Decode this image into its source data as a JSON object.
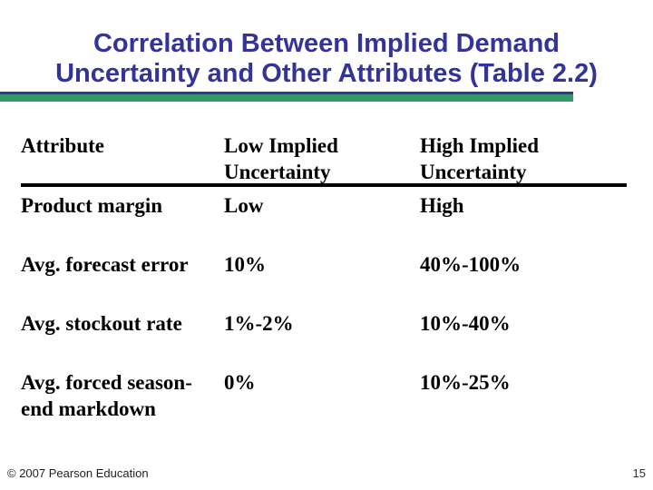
{
  "slide": {
    "title_line1": "Correlation Between Implied Demand",
    "title_line2": "Uncertainty and Other Attributes (Table 2.2)"
  },
  "colors": {
    "title_text": "#333399",
    "accent_bar_green": "#339966",
    "accent_bar_navy": "#333399",
    "table_text": "#000000",
    "header_rule": "#000000"
  },
  "table": {
    "headers": [
      "Attribute",
      "Low Implied Uncertainty",
      "High Implied Uncertainty"
    ],
    "rows": [
      [
        "Product margin",
        "Low",
        "High"
      ],
      [
        "Avg. forecast error",
        "10%",
        "40%-100%"
      ],
      [
        "Avg. stockout rate",
        "1%-2%",
        "10%-40%"
      ],
      [
        "Avg. forced season-end markdown",
        "0%",
        "10%-25%"
      ]
    ]
  },
  "footer": {
    "copyright": "© 2007 Pearson Education",
    "page_number": "15"
  }
}
